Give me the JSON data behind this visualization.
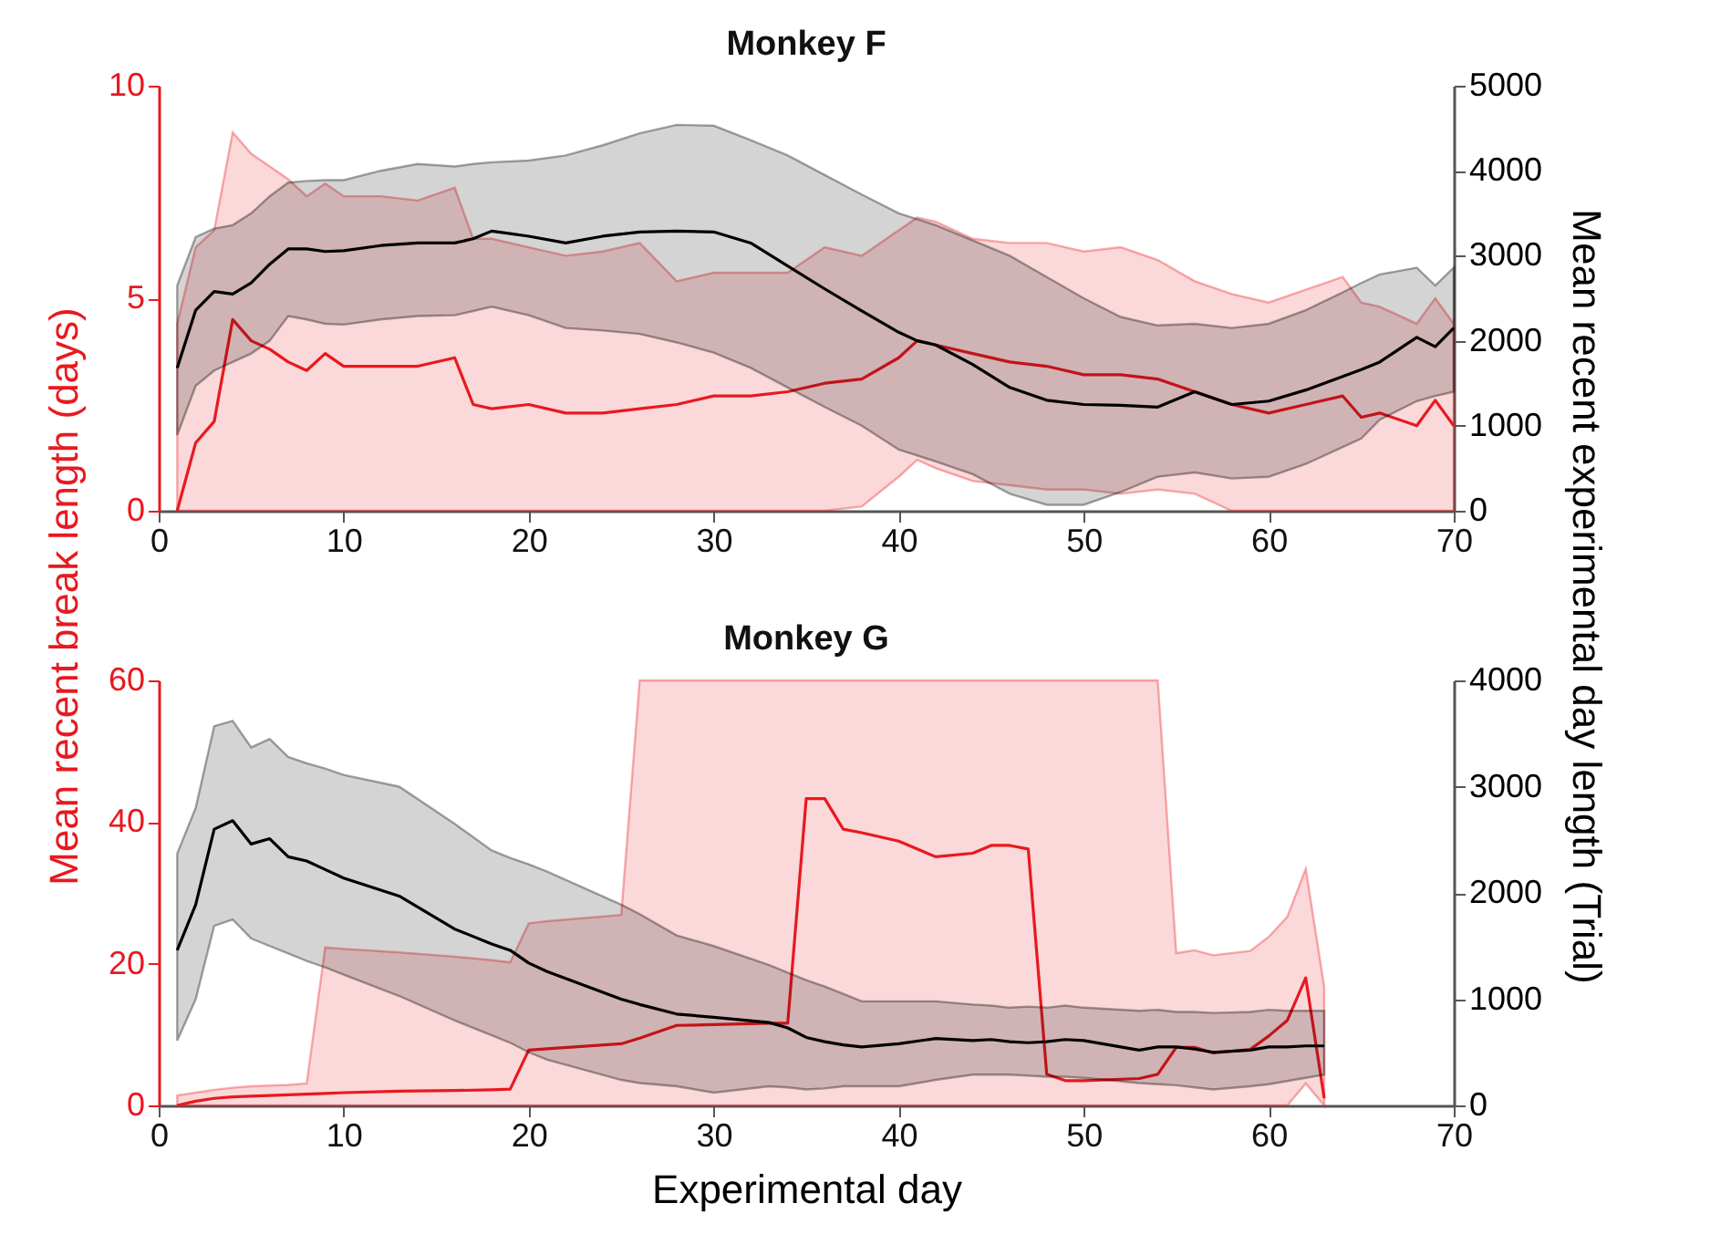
{
  "chart_data": [
    {
      "type": "line",
      "title": "Monkey F",
      "ylabel": "Mean recent break length (days)",
      "y2label": "Mean recent  experimental day length (Trial)",
      "xlim": [
        0,
        70
      ],
      "xticks": [
        0,
        10,
        20,
        30,
        40,
        50,
        60,
        70
      ],
      "ylim": [
        0,
        10
      ],
      "yticks": [
        0,
        5,
        10
      ],
      "y2lim": [
        0,
        5000
      ],
      "y2ticks": [
        0,
        1000,
        2000,
        3000,
        4000,
        5000
      ],
      "x": [
        1,
        2,
        3,
        4,
        5,
        6,
        7,
        8,
        9,
        10,
        12,
        14,
        16,
        17,
        18,
        20,
        22,
        24,
        26,
        28,
        30,
        32,
        34,
        36,
        38,
        40,
        41,
        42,
        44,
        46,
        48,
        50,
        52,
        54,
        56,
        58,
        60,
        62,
        64,
        65,
        66,
        68,
        69,
        70
      ],
      "series": [
        {
          "color": "#e8191f",
          "values": [
            0,
            1.6,
            2.1,
            4.5,
            4.0,
            3.8,
            3.5,
            3.3,
            3.7,
            3.4,
            3.4,
            3.4,
            3.6,
            2.5,
            2.4,
            2.5,
            2.3,
            2.3,
            2.4,
            2.5,
            2.7,
            2.7,
            2.8,
            3.0,
            3.1,
            3.6,
            4.0,
            3.9,
            3.7,
            3.5,
            3.4,
            3.2,
            3.2,
            3.1,
            2.8,
            2.5,
            2.3,
            2.5,
            2.7,
            2.2,
            2.3,
            2.0,
            2.6,
            2.0
          ],
          "lower": [
            0,
            0,
            0,
            0,
            0,
            0,
            0,
            0,
            0,
            0,
            0,
            0,
            0,
            0,
            0,
            0,
            0,
            0,
            0,
            0,
            0,
            0,
            0,
            0,
            0.1,
            0.8,
            1.2,
            1.0,
            0.7,
            0.6,
            0.5,
            0.5,
            0.4,
            0.5,
            0.4,
            0,
            0,
            0,
            0,
            0,
            0,
            0,
            0,
            0
          ],
          "upper": [
            4.4,
            6.2,
            6.6,
            8.9,
            8.4,
            8.1,
            7.8,
            7.4,
            7.7,
            7.4,
            7.4,
            7.3,
            7.6,
            6.4,
            6.4,
            6.2,
            6.0,
            6.1,
            6.3,
            5.4,
            5.6,
            5.6,
            5.6,
            6.2,
            6.0,
            6.6,
            6.9,
            6.8,
            6.4,
            6.3,
            6.3,
            6.1,
            6.2,
            5.9,
            5.4,
            5.1,
            4.9,
            5.2,
            5.5,
            4.9,
            4.8,
            4.4,
            5.0,
            4.4
          ]
        },
        {
          "color": "#000000",
          "axis": "y2",
          "values": [
            1680,
            2360,
            2580,
            2550,
            2680,
            2900,
            3080,
            3080,
            3050,
            3060,
            3120,
            3150,
            3150,
            3200,
            3290,
            3230,
            3150,
            3230,
            3280,
            3290,
            3280,
            3150,
            2880,
            2610,
            2350,
            2100,
            2000,
            1950,
            1720,
            1450,
            1300,
            1250,
            1240,
            1220,
            1400,
            1250,
            1290,
            1420,
            1580,
            1660,
            1750,
            2040,
            1930,
            2150
          ],
          "lower": [
            890,
            1470,
            1650,
            1750,
            1850,
            2000,
            2290,
            2250,
            2200,
            2190,
            2250,
            2290,
            2300,
            2350,
            2400,
            2300,
            2150,
            2120,
            2080,
            1980,
            1860,
            1680,
            1450,
            1220,
            1000,
            720,
            650,
            580,
            430,
            200,
            70,
            70,
            220,
            400,
            450,
            380,
            400,
            550,
            750,
            850,
            1070,
            1290,
            1350,
            1400
          ],
          "upper": [
            2650,
            3220,
            3320,
            3360,
            3500,
            3700,
            3860,
            3880,
            3890,
            3890,
            4000,
            4080,
            4050,
            4080,
            4100,
            4120,
            4180,
            4300,
            4440,
            4540,
            4530,
            4360,
            4180,
            3950,
            3720,
            3500,
            3430,
            3360,
            3180,
            3000,
            2750,
            2500,
            2280,
            2180,
            2200,
            2150,
            2200,
            2360,
            2570,
            2680,
            2780,
            2860,
            2650,
            2860
          ]
        }
      ]
    },
    {
      "type": "line",
      "title": "Monkey G",
      "xlabel": "Experimental day",
      "xlim": [
        0,
        70
      ],
      "xticks": [
        0,
        10,
        20,
        30,
        40,
        50,
        60,
        70
      ],
      "ylim": [
        0,
        60
      ],
      "yticks": [
        0,
        20,
        40,
        60
      ],
      "y2lim": [
        0,
        4000
      ],
      "y2ticks": [
        0,
        1000,
        2000,
        3000,
        4000
      ],
      "x": [
        1,
        2,
        3,
        4,
        5,
        6,
        7,
        8,
        9,
        10,
        13,
        16,
        18,
        19,
        20,
        21,
        25,
        26,
        28,
        30,
        33,
        34,
        35,
        36,
        37,
        38,
        40,
        42,
        44,
        45,
        46,
        47,
        48,
        49,
        50,
        53,
        54,
        55,
        56,
        57,
        59,
        60,
        61,
        62,
        63
      ],
      "series": [
        {
          "color": "#e8191f",
          "values": [
            0,
            0.6,
            1.0,
            1.2,
            1.3,
            1.4,
            1.5,
            1.6,
            1.7,
            1.8,
            2.0,
            2.1,
            2.2,
            2.3,
            7.8,
            8.0,
            8.7,
            9.5,
            11.3,
            11.4,
            11.6,
            11.6,
            43.3,
            43.3,
            39,
            38.5,
            37.3,
            35.1,
            35.6,
            36.7,
            36.7,
            36.2,
            4.4,
            3.5,
            3.5,
            3.8,
            4.4,
            8.2,
            8.2,
            7.4,
            7.9,
            9.8,
            12.0,
            18,
            1.0
          ],
          "lower": [
            0,
            0,
            0,
            0,
            0,
            0,
            0,
            0,
            0,
            0,
            0,
            0,
            0,
            0,
            0,
            0,
            0,
            0,
            0,
            0,
            0,
            0,
            0,
            0,
            0,
            0,
            0,
            0,
            0,
            0,
            0,
            0,
            0,
            0,
            0,
            0,
            0,
            0,
            0,
            0,
            0,
            0,
            0,
            3.1,
            0
          ],
          "upper": [
            1.4,
            1.8,
            2.2,
            2.5,
            2.7,
            2.8,
            2.9,
            3.1,
            22.3,
            22.1,
            21.6,
            21.0,
            20.5,
            20.2,
            25.7,
            26.0,
            26.9,
            60,
            60,
            60,
            60,
            60,
            60,
            60,
            60,
            60,
            60,
            60,
            60,
            60,
            60,
            60,
            60,
            60,
            60,
            60,
            60,
            21.5,
            21.9,
            21.2,
            21.8,
            23.8,
            26.6,
            33.4,
            16.7
          ]
        },
        {
          "color": "#000000",
          "axis": "y2",
          "values": [
            1460,
            1890,
            2600,
            2680,
            2460,
            2510,
            2340,
            2300,
            2220,
            2140,
            1970,
            1660,
            1520,
            1460,
            1340,
            1260,
            1000,
            950,
            860,
            830,
            780,
            730,
            640,
            600,
            570,
            550,
            580,
            630,
            610,
            620,
            600,
            590,
            600,
            620,
            610,
            520,
            550,
            550,
            530,
            500,
            520,
            550,
            550,
            560,
            560
          ],
          "lower": [
            610,
            1000,
            1690,
            1750,
            1570,
            1500,
            1430,
            1360,
            1300,
            1230,
            1030,
            800,
            660,
            590,
            500,
            430,
            240,
            210,
            180,
            120,
            180,
            170,
            150,
            160,
            180,
            180,
            180,
            240,
            290,
            290,
            290,
            280,
            270,
            270,
            260,
            210,
            200,
            190,
            170,
            150,
            180,
            200,
            230,
            260,
            290
          ],
          "upper": [
            2370,
            2800,
            3570,
            3620,
            3370,
            3450,
            3280,
            3220,
            3170,
            3110,
            3000,
            2650,
            2400,
            2330,
            2270,
            2200,
            1890,
            1800,
            1600,
            1500,
            1320,
            1250,
            1180,
            1120,
            1050,
            980,
            980,
            980,
            950,
            940,
            920,
            930,
            920,
            940,
            920,
            890,
            900,
            880,
            880,
            870,
            880,
            900,
            890,
            890,
            890
          ]
        }
      ]
    }
  ]
}
